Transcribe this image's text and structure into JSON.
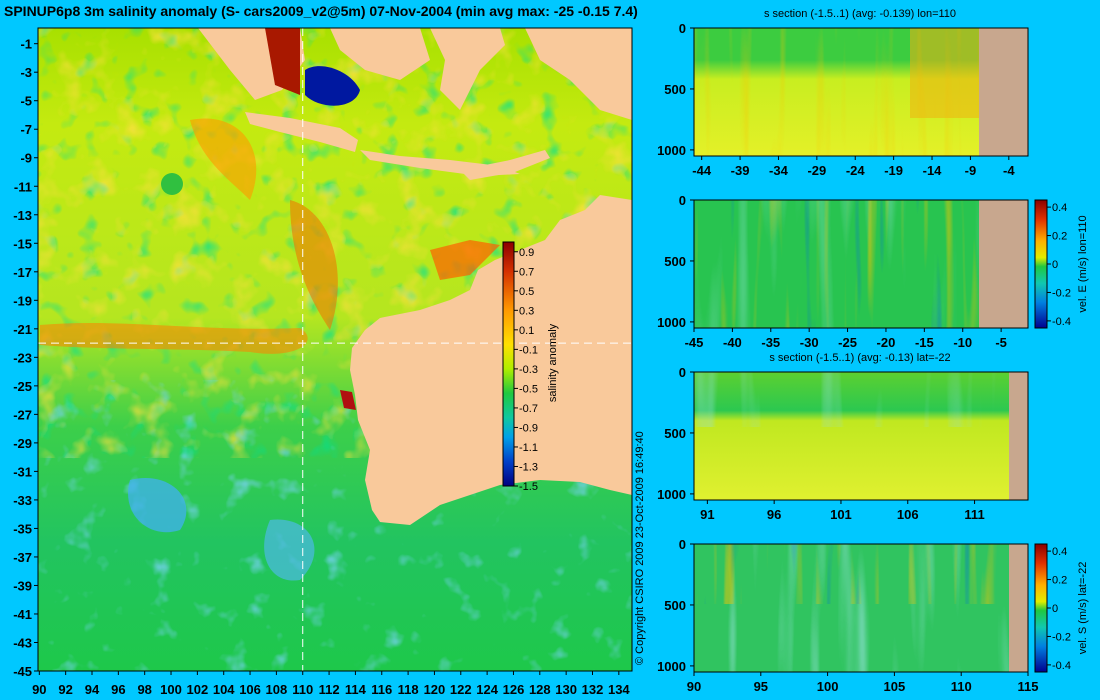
{
  "title": "SPINUP6p8 3m salinity anomaly (S- cars2009_v2@5m) 07-Nov-2004 (min avg max: -25 -0.15 7.4)",
  "copyright": "© Copyright CSIRO 2009  23-Oct-2009 16:49:40",
  "colors": {
    "background": "#00c8ff",
    "land": "#f9c99b",
    "section_land": "#c8a78e"
  },
  "chart_data": [
    {
      "type": "heatmap",
      "name": "map",
      "x_ticks": [
        "90",
        "92",
        "94",
        "96",
        "98",
        "100",
        "102",
        "104",
        "106",
        "108",
        "110",
        "112",
        "114",
        "116",
        "118",
        "120",
        "122",
        "124",
        "126",
        "128",
        "130",
        "132",
        "134"
      ],
      "y_ticks": [
        "-1",
        "-3",
        "-5",
        "-7",
        "-9",
        "-11",
        "-13",
        "-15",
        "-17",
        "-19",
        "-21",
        "-23",
        "-25",
        "-27",
        "-29",
        "-31",
        "-33",
        "-35",
        "-37",
        "-39",
        "-41",
        "-43",
        "-45"
      ],
      "xlim": [
        89.9,
        135
      ],
      "ylim": [
        -45,
        0.1
      ],
      "crosshair": {
        "lon": 110,
        "lat": -22
      },
      "colorbar": {
        "label": "salinity anomaly",
        "ticks": [
          "0.9",
          "0.7",
          "0.5",
          "0.3",
          "0.1",
          "-0.1",
          "-0.3",
          "-0.5",
          "-0.7",
          "-0.9",
          "-1.1",
          "-1.3",
          "-1.5"
        ],
        "range": [
          -1.5,
          1.0
        ]
      }
    },
    {
      "type": "heatmap",
      "name": "s-section-lon",
      "title": "s section (-1.5..1) (avg: -0.139) lon=110",
      "x_ticks": [
        "-44",
        "-39",
        "-34",
        "-29",
        "-24",
        "-19",
        "-14",
        "-9",
        "-4"
      ],
      "y_ticks": [
        "0",
        "500",
        "1000"
      ],
      "xlim": [
        -45,
        -1.5
      ],
      "ylim": [
        1050,
        0
      ]
    },
    {
      "type": "heatmap",
      "name": "vel-e-section",
      "x_ticks": [
        "-45",
        "-40",
        "-35",
        "-30",
        "-25",
        "-20",
        "-15",
        "-10",
        "-5"
      ],
      "y_ticks": [
        "0",
        "500",
        "1000"
      ],
      "xlim": [
        -45,
        -1.5
      ],
      "ylim": [
        1050,
        0
      ],
      "colorbar": {
        "label": "vel. E (m/s) lon=110",
        "ticks": [
          "0.4",
          "0.2",
          "0",
          "-0.2",
          "-0.4"
        ],
        "range": [
          -0.45,
          0.45
        ]
      }
    },
    {
      "type": "heatmap",
      "name": "s-section-lat",
      "title": "s section (-1.5..1) (avg: -0.13) lat=-22",
      "x_ticks": [
        "91",
        "96",
        "101",
        "106",
        "111"
      ],
      "y_ticks": [
        "0",
        "500",
        "1000"
      ],
      "xlim": [
        90,
        115
      ],
      "ylim": [
        1050,
        0
      ]
    },
    {
      "type": "heatmap",
      "name": "vel-s-section",
      "x_ticks": [
        "90",
        "95",
        "100",
        "105",
        "110",
        "115"
      ],
      "y_ticks": [
        "0",
        "500",
        "1000"
      ],
      "xlim": [
        90,
        115
      ],
      "ylim": [
        1050,
        0
      ],
      "colorbar": {
        "label": "vel. S (m/s) lat=-22",
        "ticks": [
          "0.4",
          "0.2",
          "0",
          "-0.2",
          "-0.4"
        ],
        "range": [
          -0.45,
          0.45
        ]
      }
    }
  ]
}
